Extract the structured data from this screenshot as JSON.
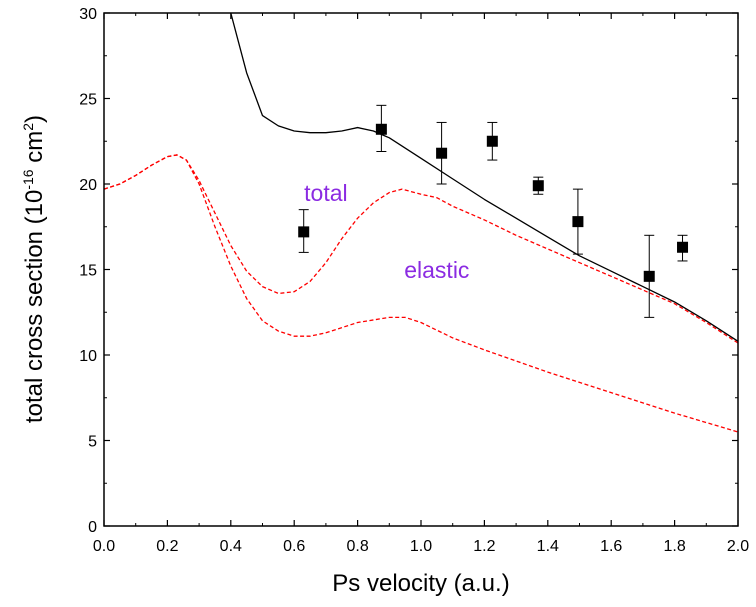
{
  "chart_data": {
    "type": "line",
    "xlabel": "Ps velocity (a.u.)",
    "ylabel": {
      "prefix": "total cross section (10",
      "exp1": "-16",
      "mid": " cm",
      "exp2": "2",
      "suffix": ")"
    },
    "xlim": [
      0.0,
      2.0
    ],
    "ylim": [
      0,
      30
    ],
    "x_ticks": [
      "0.0",
      "0.2",
      "0.4",
      "0.6",
      "0.8",
      "1.0",
      "1.2",
      "1.4",
      "1.6",
      "1.8",
      "2.0"
    ],
    "y_ticks": [
      "0",
      "5",
      "10",
      "15",
      "20",
      "25",
      "30"
    ],
    "grid": false,
    "annotations": [
      {
        "text": "total",
        "x": 0.7,
        "y": 19.0,
        "color": "#8b2be2"
      },
      {
        "text": "elastic",
        "x": 1.05,
        "y": 14.5,
        "color": "#8b2be2"
      }
    ],
    "series": [
      {
        "style": "solid",
        "color": "#000000",
        "points": [
          [
            0.4,
            30.0
          ],
          [
            0.42,
            28.6
          ],
          [
            0.45,
            26.5
          ],
          [
            0.48,
            25.0
          ],
          [
            0.5,
            24.0
          ],
          [
            0.55,
            23.4
          ],
          [
            0.6,
            23.1
          ],
          [
            0.65,
            23.0
          ],
          [
            0.7,
            23.0
          ],
          [
            0.75,
            23.1
          ],
          [
            0.8,
            23.3
          ],
          [
            0.85,
            23.1
          ],
          [
            0.9,
            22.7
          ],
          [
            1.0,
            21.5
          ],
          [
            1.1,
            20.3
          ],
          [
            1.2,
            19.1
          ],
          [
            1.3,
            18.0
          ],
          [
            1.4,
            16.9
          ],
          [
            1.5,
            15.8
          ],
          [
            1.6,
            14.9
          ],
          [
            1.7,
            14.0
          ],
          [
            1.8,
            13.1
          ],
          [
            1.9,
            12.0
          ],
          [
            2.0,
            10.8
          ]
        ]
      },
      {
        "style": "dashed",
        "color": "#ff0000",
        "points": [
          [
            0.0,
            19.7
          ],
          [
            0.05,
            20.0
          ],
          [
            0.1,
            20.5
          ],
          [
            0.15,
            21.1
          ],
          [
            0.2,
            21.6
          ],
          [
            0.23,
            21.7
          ],
          [
            0.26,
            21.4
          ],
          [
            0.3,
            20.2
          ],
          [
            0.35,
            18.3
          ],
          [
            0.4,
            16.4
          ],
          [
            0.45,
            14.9
          ],
          [
            0.5,
            14.0
          ],
          [
            0.55,
            13.6
          ],
          [
            0.6,
            13.7
          ],
          [
            0.65,
            14.3
          ],
          [
            0.7,
            15.4
          ],
          [
            0.75,
            16.8
          ],
          [
            0.8,
            18.0
          ],
          [
            0.85,
            18.9
          ],
          [
            0.9,
            19.5
          ],
          [
            0.94,
            19.7
          ],
          [
            1.0,
            19.4
          ],
          [
            1.05,
            19.2
          ],
          [
            1.1,
            18.7
          ],
          [
            1.2,
            17.9
          ],
          [
            1.3,
            17.0
          ],
          [
            1.4,
            16.2
          ],
          [
            1.5,
            15.4
          ],
          [
            1.6,
            14.6
          ],
          [
            1.7,
            13.8
          ],
          [
            1.8,
            13.0
          ],
          [
            1.9,
            11.9
          ],
          [
            2.0,
            10.7
          ]
        ]
      },
      {
        "style": "dashed",
        "color": "#ff0000",
        "points": [
          [
            0.0,
            19.7
          ],
          [
            0.05,
            20.0
          ],
          [
            0.1,
            20.5
          ],
          [
            0.15,
            21.1
          ],
          [
            0.2,
            21.6
          ],
          [
            0.23,
            21.7
          ],
          [
            0.26,
            21.4
          ],
          [
            0.3,
            20.0
          ],
          [
            0.35,
            17.5
          ],
          [
            0.4,
            15.2
          ],
          [
            0.45,
            13.3
          ],
          [
            0.5,
            12.0
          ],
          [
            0.55,
            11.4
          ],
          [
            0.6,
            11.1
          ],
          [
            0.65,
            11.1
          ],
          [
            0.7,
            11.3
          ],
          [
            0.8,
            11.9
          ],
          [
            0.9,
            12.2
          ],
          [
            0.95,
            12.2
          ],
          [
            1.0,
            11.9
          ],
          [
            1.1,
            11.0
          ],
          [
            1.2,
            10.3
          ],
          [
            1.4,
            9.0
          ],
          [
            1.6,
            7.8
          ],
          [
            1.8,
            6.6
          ],
          [
            2.0,
            5.5
          ]
        ]
      },
      {
        "type": "scatter",
        "marker": "square",
        "color": "#000000",
        "points": [
          {
            "x": 0.63,
            "y": 17.2,
            "ylow": 16.0,
            "yhigh": 18.5
          },
          {
            "x": 0.875,
            "y": 23.2,
            "ylow": 21.9,
            "yhigh": 24.6
          },
          {
            "x": 1.065,
            "y": 21.8,
            "ylow": 20.0,
            "yhigh": 23.6
          },
          {
            "x": 1.225,
            "y": 22.5,
            "ylow": 21.4,
            "yhigh": 23.6
          },
          {
            "x": 1.37,
            "y": 19.9,
            "ylow": 19.4,
            "yhigh": 20.4
          },
          {
            "x": 1.495,
            "y": 17.8,
            "ylow": 15.9,
            "yhigh": 19.7
          },
          {
            "x": 1.72,
            "y": 14.6,
            "ylow": 12.2,
            "yhigh": 17.0
          },
          {
            "x": 1.825,
            "y": 16.3,
            "ylow": 15.5,
            "yhigh": 17.0
          }
        ]
      }
    ]
  }
}
